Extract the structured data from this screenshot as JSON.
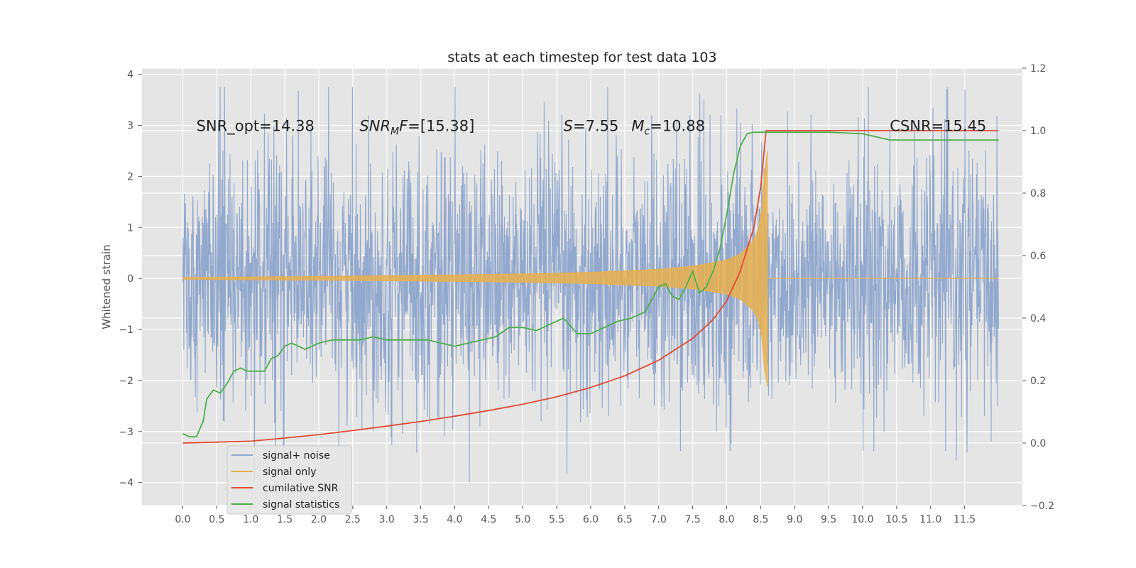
{
  "chart_data": {
    "type": "line",
    "title": "stats at each timestep for test data 103",
    "xlabel": "",
    "ylabel": "Whitened strain",
    "xlim": [
      -0.6,
      12.35
    ],
    "ylim": [
      -4.45,
      4.12
    ],
    "y2lim": [
      -0.2,
      1.2
    ],
    "grid": true,
    "x_ticks": [
      "0.0",
      "0.5",
      "1.0",
      "1.5",
      "2.0",
      "2.5",
      "3.0",
      "3.5",
      "4.0",
      "4.5",
      "5.0",
      "5.5",
      "6.0",
      "6.5",
      "7.0",
      "7.5",
      "8.0",
      "8.5",
      "9.0",
      "9.5",
      "10.0",
      "10.5",
      "11.0",
      "11.5"
    ],
    "y_ticks": [
      "4",
      "3",
      "2",
      "1",
      "0",
      "−1",
      "−2",
      "−3",
      "−4"
    ],
    "y2_ticks": [
      "1.2",
      "1.0",
      "0.8",
      "0.6",
      "0.4",
      "0.2",
      "0.0",
      "−0.2"
    ],
    "annotations": [
      {
        "text": "SNR_opt=14.38",
        "x": 0.2,
        "y": 3.0
      },
      {
        "text": "SNRMF=[15.38]",
        "main": "SNR",
        "sub": "M",
        "rest": "F=[15.38]",
        "x": 2.6,
        "y": 3.0
      },
      {
        "text": "S=7.55",
        "main": "S",
        "rest": "=7.55",
        "x": 5.6,
        "y": 3.0
      },
      {
        "text": "Mc=10.88",
        "main": "M",
        "sub": "c",
        "rest": "=10.88",
        "x": 6.6,
        "y": 3.0
      },
      {
        "text": "CSNR=15.45",
        "x": 10.4,
        "y": 3.0
      }
    ],
    "legend_placement": "lower-left",
    "series": [
      {
        "name": "signal+ noise",
        "color": "#92a8cd",
        "axis": "left",
        "kind": "noise",
        "x_range": [
          0.0,
          12.0
        ],
        "amplitude_typical": 1.5,
        "max": 3.75,
        "min": -4.0
      },
      {
        "name": "signal only",
        "color": "#e8b04e",
        "axis": "left",
        "kind": "chirp",
        "x_range": [
          0.0,
          8.6
        ],
        "envelope_x": [
          0.0,
          2.0,
          4.0,
          5.0,
          6.0,
          7.0,
          7.5,
          8.0,
          8.2,
          8.4,
          8.5,
          8.58
        ],
        "envelope_y": [
          0.02,
          0.04,
          0.07,
          0.09,
          0.12,
          0.18,
          0.24,
          0.36,
          0.48,
          0.75,
          1.1,
          2.5
        ]
      },
      {
        "name": "cumilative SNR",
        "color": "#e24a33",
        "axis": "right",
        "x": [
          0.0,
          0.5,
          1.0,
          1.5,
          2.0,
          2.5,
          3.0,
          3.5,
          4.0,
          4.5,
          5.0,
          5.5,
          6.0,
          6.5,
          7.0,
          7.5,
          7.8,
          8.0,
          8.2,
          8.4,
          8.5,
          8.58,
          8.6,
          9.0,
          10.0,
          11.0,
          12.0
        ],
        "y": [
          0.0,
          0.003,
          0.006,
          0.016,
          0.027,
          0.04,
          0.054,
          0.069,
          0.086,
          0.104,
          0.124,
          0.148,
          0.178,
          0.215,
          0.265,
          0.335,
          0.395,
          0.455,
          0.55,
          0.69,
          0.82,
          1.0,
          1.0,
          1.0,
          1.0,
          1.0,
          1.0
        ]
      },
      {
        "name": "signal statistics",
        "color": "#4daf4a",
        "axis": "right",
        "x": [
          0.0,
          0.1,
          0.2,
          0.3,
          0.35,
          0.45,
          0.55,
          0.65,
          0.75,
          0.85,
          0.95,
          1.05,
          1.2,
          1.3,
          1.4,
          1.5,
          1.6,
          1.7,
          1.8,
          1.9,
          2.0,
          2.2,
          2.4,
          2.6,
          2.8,
          3.0,
          3.2,
          3.4,
          3.6,
          3.8,
          4.0,
          4.2,
          4.4,
          4.6,
          4.8,
          5.0,
          5.2,
          5.4,
          5.6,
          5.8,
          6.0,
          6.2,
          6.4,
          6.6,
          6.8,
          7.0,
          7.1,
          7.2,
          7.3,
          7.4,
          7.5,
          7.6,
          7.7,
          7.8,
          7.9,
          8.0,
          8.1,
          8.2,
          8.3,
          8.4,
          8.5,
          8.6,
          9.0,
          9.5,
          10.0,
          10.2,
          10.4,
          10.6,
          11.0,
          11.5,
          12.0
        ],
        "y": [
          0.03,
          0.02,
          0.02,
          0.07,
          0.14,
          0.17,
          0.16,
          0.19,
          0.23,
          0.24,
          0.23,
          0.23,
          0.23,
          0.27,
          0.28,
          0.31,
          0.32,
          0.31,
          0.3,
          0.31,
          0.32,
          0.33,
          0.33,
          0.33,
          0.34,
          0.33,
          0.33,
          0.33,
          0.33,
          0.32,
          0.31,
          0.32,
          0.33,
          0.34,
          0.37,
          0.37,
          0.36,
          0.38,
          0.4,
          0.35,
          0.35,
          0.37,
          0.39,
          0.4,
          0.42,
          0.5,
          0.51,
          0.47,
          0.46,
          0.5,
          0.55,
          0.48,
          0.5,
          0.55,
          0.62,
          0.73,
          0.86,
          0.95,
          0.99,
          0.995,
          0.995,
          0.995,
          0.995,
          0.995,
          0.99,
          0.98,
          0.97,
          0.97,
          0.97,
          0.97,
          0.97
        ]
      }
    ]
  }
}
